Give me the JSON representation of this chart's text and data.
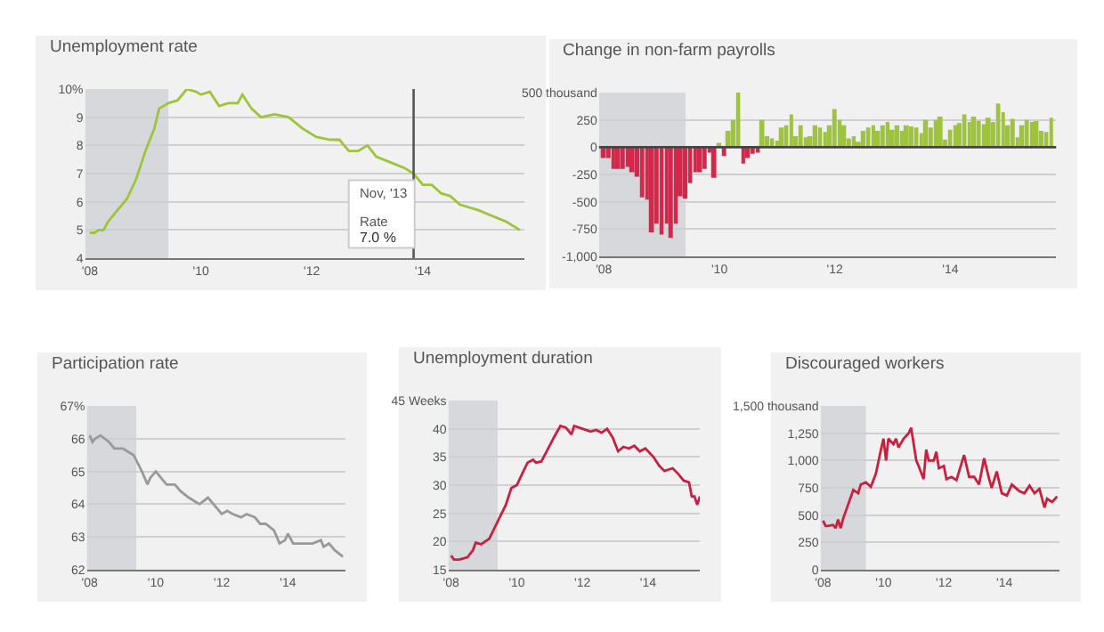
{
  "chart_data": [
    {
      "type": "line",
      "title": "Unemployment rate",
      "color": "#9dc43a",
      "grid": "y",
      "x": [
        "2008-01",
        "2008-02",
        "2008-03",
        "2008-04",
        "2008-05",
        "2008-07",
        "2008-09",
        "2008-11",
        "2009-01",
        "2009-03",
        "2009-04",
        "2009-06",
        "2009-08",
        "2009-10",
        "2009-12",
        "2010-01",
        "2010-03",
        "2010-05",
        "2010-07",
        "2010-09",
        "2010-10",
        "2010-12",
        "2011-02",
        "2011-05",
        "2011-08",
        "2011-11",
        "2012-02",
        "2012-05",
        "2012-07",
        "2012-09",
        "2012-11",
        "2013-01",
        "2013-03",
        "2013-06",
        "2013-09",
        "2013-11",
        "2014-01",
        "2014-03",
        "2014-05",
        "2014-07",
        "2014-09",
        "2014-11",
        "2015-01",
        "2015-04",
        "2015-07",
        "2015-10"
      ],
      "values": [
        4.9,
        4.9,
        5.0,
        5.0,
        5.3,
        5.7,
        6.1,
        6.8,
        7.8,
        8.6,
        9.3,
        9.5,
        9.6,
        10.0,
        9.9,
        9.8,
        9.9,
        9.4,
        9.5,
        9.5,
        9.8,
        9.3,
        9.0,
        9.1,
        9.0,
        8.6,
        8.3,
        8.2,
        8.2,
        7.8,
        7.8,
        8.0,
        7.6,
        7.4,
        7.2,
        7.0,
        6.6,
        6.6,
        6.3,
        6.2,
        5.9,
        5.8,
        5.7,
        5.5,
        5.3,
        5.0
      ],
      "xlim": [
        "2007-12",
        "2015-11"
      ],
      "ylim": [
        4,
        10
      ],
      "xticks": [
        {
          "value": "2008-01-01",
          "label": "'08"
        },
        {
          "value": "2010-01-01",
          "label": "'10"
        },
        {
          "value": "2012-01-01",
          "label": "'12"
        },
        {
          "value": "2014-01-01",
          "label": "'14"
        }
      ],
      "yticks": [
        4,
        5,
        6,
        7,
        8,
        9,
        {
          "value": 10,
          "label": "10%"
        }
      ],
      "bands": [
        {
          "axis": "x",
          "from": "2007-12",
          "to": "2009-06",
          "color": "#d6d8db"
        }
      ],
      "ref_lines": [
        {
          "axis": "x",
          "value": "2013-11",
          "color": "#555555"
        }
      ],
      "annotations": [
        "Nov, '13",
        "Rate",
        "7.0 %"
      ]
    },
    {
      "type": "bar",
      "title": "Change in non-farm payrolls",
      "grid": "y",
      "x": [
        "2008-01",
        "2008-02",
        "2008-03",
        "2008-04",
        "2008-05",
        "2008-06",
        "2008-07",
        "2008-08",
        "2008-09",
        "2008-10",
        "2008-11",
        "2008-12",
        "2009-01",
        "2009-02",
        "2009-03",
        "2009-04",
        "2009-05",
        "2009-06",
        "2009-07",
        "2009-08",
        "2009-09",
        "2009-10",
        "2009-11",
        "2009-12",
        "2010-01",
        "2010-02",
        "2010-03",
        "2010-04",
        "2010-05",
        "2010-06",
        "2010-07",
        "2010-08",
        "2010-09",
        "2010-10",
        "2010-11",
        "2010-12",
        "2011-01",
        "2011-02",
        "2011-03",
        "2011-04",
        "2011-05",
        "2011-06",
        "2011-07",
        "2011-08",
        "2011-09",
        "2011-10",
        "2011-11",
        "2011-12",
        "2012-01",
        "2012-02",
        "2012-03",
        "2012-04",
        "2012-05",
        "2012-06",
        "2012-07",
        "2012-08",
        "2012-09",
        "2012-10",
        "2012-11",
        "2012-12",
        "2013-01",
        "2013-02",
        "2013-03",
        "2013-04",
        "2013-05",
        "2013-06",
        "2013-07",
        "2013-08",
        "2013-09",
        "2013-10",
        "2013-11",
        "2013-12",
        "2014-01",
        "2014-02",
        "2014-03",
        "2014-04",
        "2014-05",
        "2014-06",
        "2014-07",
        "2014-08",
        "2014-09",
        "2014-10",
        "2014-11",
        "2014-12",
        "2015-01",
        "2015-02",
        "2015-03",
        "2015-04",
        "2015-05",
        "2015-06",
        "2015-07",
        "2015-08",
        "2015-09",
        "2015-10"
      ],
      "values": [
        -100,
        -100,
        -200,
        -200,
        -200,
        -180,
        -230,
        -270,
        -460,
        -480,
        -780,
        -700,
        -800,
        -700,
        -830,
        -700,
        -450,
        -470,
        -330,
        -230,
        -230,
        -200,
        -50,
        -280,
        40,
        -80,
        150,
        250,
        500,
        -150,
        -100,
        -60,
        -50,
        250,
        100,
        80,
        60,
        180,
        200,
        300,
        100,
        200,
        90,
        100,
        200,
        180,
        140,
        200,
        350,
        250,
        200,
        80,
        100,
        50,
        150,
        180,
        200,
        150,
        200,
        230,
        160,
        200,
        150,
        200,
        190,
        180,
        130,
        250,
        180,
        250,
        280,
        70,
        160,
        200,
        220,
        300,
        230,
        280,
        240,
        210,
        270,
        230,
        400,
        320,
        200,
        260,
        90,
        200,
        250,
        230,
        240,
        150,
        140,
        270
      ],
      "colors": [
        "#d7264a",
        "#d7264a",
        "#d7264a",
        "#d7264a",
        "#d7264a",
        "#d7264a",
        "#d7264a",
        "#d7264a",
        "#d7264a",
        "#d7264a",
        "#d7264a",
        "#d7264a",
        "#d7264a",
        "#d7264a",
        "#d7264a",
        "#d7264a",
        "#d7264a",
        "#d7264a",
        "#d7264a",
        "#d7264a",
        "#d7264a",
        "#d7264a",
        "#d7264a",
        "#d7264a",
        "#9dc43a",
        "#d7264a",
        "#9dc43a",
        "#9dc43a",
        "#9dc43a",
        "#d7264a",
        "#d7264a",
        "#d7264a",
        "#d7264a",
        "#9dc43a",
        "#9dc43a",
        "#9dc43a",
        "#9dc43a",
        "#9dc43a",
        "#9dc43a",
        "#9dc43a",
        "#9dc43a",
        "#9dc43a",
        "#9dc43a",
        "#9dc43a",
        "#9dc43a",
        "#9dc43a",
        "#9dc43a",
        "#9dc43a",
        "#9dc43a",
        "#9dc43a",
        "#9dc43a",
        "#9dc43a",
        "#9dc43a",
        "#9dc43a",
        "#9dc43a",
        "#9dc43a",
        "#9dc43a",
        "#9dc43a",
        "#9dc43a",
        "#9dc43a",
        "#9dc43a",
        "#9dc43a",
        "#9dc43a",
        "#9dc43a",
        "#9dc43a",
        "#9dc43a",
        "#9dc43a",
        "#9dc43a",
        "#9dc43a",
        "#9dc43a",
        "#9dc43a",
        "#9dc43a",
        "#9dc43a",
        "#9dc43a",
        "#9dc43a",
        "#9dc43a",
        "#9dc43a",
        "#9dc43a",
        "#9dc43a",
        "#9dc43a",
        "#9dc43a",
        "#9dc43a",
        "#9dc43a",
        "#9dc43a",
        "#9dc43a",
        "#9dc43a",
        "#9dc43a",
        "#9dc43a",
        "#9dc43a",
        "#9dc43a",
        "#9dc43a",
        "#9dc43a",
        "#9dc43a",
        "#9dc43a"
      ],
      "xlim": [
        "2007-12",
        "2015-11"
      ],
      "ylim": [
        -1000,
        500
      ],
      "xticks": [
        {
          "value": "2008-01-01",
          "label": "'08"
        },
        {
          "value": "2010-01-01",
          "label": "'10"
        },
        {
          "value": "2012-01-01",
          "label": "'12"
        },
        {
          "value": "2014-01-01",
          "label": "'14"
        }
      ],
      "yticks": [
        {
          "value": -1000,
          "label": "-1,000"
        },
        -750,
        -500,
        -250,
        0,
        250,
        {
          "value": 500,
          "label": "500 thousand"
        }
      ],
      "bands": [
        {
          "axis": "x",
          "from": "2007-12",
          "to": "2009-06",
          "color": "#d6d8db"
        }
      ],
      "ref_lines": [
        {
          "axis": "y",
          "value": 0,
          "color": "#444444"
        }
      ]
    },
    {
      "type": "line",
      "title": "Participation rate",
      "color": "#999999",
      "grid": "y",
      "x": [
        "2008-01",
        "2008-02",
        "2008-03",
        "2008-05",
        "2008-08",
        "2008-10",
        "2009-01",
        "2009-03",
        "2009-05",
        "2009-08",
        "2009-10",
        "2009-11",
        "2010-01",
        "2010-03",
        "2010-05",
        "2010-08",
        "2010-10",
        "2011-01",
        "2011-03",
        "2011-05",
        "2011-08",
        "2011-10",
        "2012-01",
        "2012-03",
        "2012-05",
        "2012-08",
        "2012-10",
        "2013-01",
        "2013-03",
        "2013-05",
        "2013-08",
        "2013-10",
        "2013-12",
        "2014-01",
        "2014-03",
        "2014-05",
        "2014-08",
        "2014-10",
        "2015-01",
        "2015-02",
        "2015-04",
        "2015-06",
        "2015-09"
      ],
      "values": [
        66.1,
        65.9,
        66.0,
        66.1,
        65.9,
        65.7,
        65.7,
        65.6,
        65.5,
        65.0,
        64.6,
        64.8,
        65.0,
        64.8,
        64.6,
        64.6,
        64.4,
        64.2,
        64.1,
        64.0,
        64.2,
        64.0,
        63.7,
        63.8,
        63.7,
        63.6,
        63.7,
        63.6,
        63.4,
        63.4,
        63.2,
        62.8,
        62.9,
        63.1,
        62.8,
        62.8,
        62.8,
        62.8,
        62.9,
        62.7,
        62.8,
        62.6,
        62.4
      ],
      "xlim": [
        "2007-12",
        "2015-10"
      ],
      "ylim": [
        62,
        67
      ],
      "xticks": [
        {
          "value": "2008-01-01",
          "label": "'08"
        },
        {
          "value": "2010-01-01",
          "label": "'10"
        },
        {
          "value": "2012-01-01",
          "label": "'12"
        },
        {
          "value": "2014-01-01",
          "label": "'14"
        }
      ],
      "yticks": [
        62,
        63,
        64,
        65,
        66,
        {
          "value": 67,
          "label": "67%"
        }
      ],
      "bands": [
        {
          "axis": "x",
          "from": "2007-12",
          "to": "2009-06",
          "color": "#d6d8db"
        }
      ]
    },
    {
      "type": "line",
      "title": "Unemployment duration",
      "color": "#c8203f",
      "grid": "y",
      "x": [
        "2008-01",
        "2008-02",
        "2008-04",
        "2008-07",
        "2008-09",
        "2008-10",
        "2008-12",
        "2009-03",
        "2009-05",
        "2009-07",
        "2009-09",
        "2009-11",
        "2010-01",
        "2010-03",
        "2010-05",
        "2010-07",
        "2010-08",
        "2010-10",
        "2011-01",
        "2011-03",
        "2011-05",
        "2011-07",
        "2011-09",
        "2011-10",
        "2012-01",
        "2012-04",
        "2012-06",
        "2012-08",
        "2012-10",
        "2012-12",
        "2013-02",
        "2013-04",
        "2013-06",
        "2013-08",
        "2013-10",
        "2013-12",
        "2014-03",
        "2014-05",
        "2014-07",
        "2014-10",
        "2014-12",
        "2015-02",
        "2015-04",
        "2015-05",
        "2015-06",
        "2015-07",
        "2015-08"
      ],
      "values": [
        17.5,
        16.8,
        16.8,
        17.2,
        18.5,
        19.8,
        19.5,
        20.5,
        22.5,
        24.5,
        26.5,
        29.5,
        30,
        32,
        34,
        34.5,
        34,
        34.2,
        37,
        38.8,
        40.5,
        40.2,
        39,
        40.5,
        40,
        39.5,
        39.8,
        39.3,
        40,
        38.5,
        36,
        36.8,
        36.5,
        37,
        36,
        36.5,
        35,
        33.5,
        32.5,
        33,
        32,
        30.8,
        30.5,
        28,
        28,
        26.5,
        28
      ],
      "xlim": [
        "2007-12",
        "2015-08"
      ],
      "ylim": [
        15,
        45
      ],
      "xticks": [
        {
          "value": "2008-01-01",
          "label": "'08"
        },
        {
          "value": "2010-01-01",
          "label": "'10"
        },
        {
          "value": "2012-01-01",
          "label": "'12"
        },
        {
          "value": "2014-01-01",
          "label": "'14"
        }
      ],
      "yticks": [
        15,
        20,
        25,
        30,
        35,
        40,
        {
          "value": 45,
          "label": "45 Weeks"
        }
      ],
      "bands": [
        {
          "axis": "x",
          "from": "2007-12",
          "to": "2009-06",
          "color": "#d6d8db"
        }
      ]
    },
    {
      "type": "line",
      "title": "Discouraged workers",
      "color": "#c8203f",
      "grid": "y",
      "x": [
        "2008-01",
        "2008-02",
        "2008-03",
        "2008-05",
        "2008-06",
        "2008-07",
        "2008-08",
        "2008-09",
        "2008-11",
        "2009-01",
        "2009-03",
        "2009-04",
        "2009-06",
        "2009-08",
        "2009-10",
        "2009-12",
        "2010-01",
        "2010-02",
        "2010-03",
        "2010-05",
        "2010-06",
        "2010-07",
        "2010-09",
        "2010-11",
        "2010-12",
        "2011-02",
        "2011-03",
        "2011-05",
        "2011-06",
        "2011-07",
        "2011-09",
        "2011-10",
        "2011-11",
        "2012-01",
        "2012-02",
        "2012-04",
        "2012-06",
        "2012-09",
        "2012-11",
        "2013-01",
        "2013-03",
        "2013-05",
        "2013-07",
        "2013-08",
        "2013-10",
        "2013-12",
        "2014-02",
        "2014-04",
        "2014-07",
        "2014-09",
        "2014-11",
        "2015-01",
        "2015-03",
        "2015-05",
        "2015-06",
        "2015-08",
        "2015-10"
      ],
      "values": [
        450,
        400,
        400,
        410,
        380,
        460,
        380,
        470,
        600,
        730,
        700,
        780,
        800,
        760,
        880,
        1100,
        1200,
        1000,
        1200,
        1150,
        1200,
        1120,
        1200,
        1250,
        1300,
        1000,
        950,
        830,
        1100,
        1000,
        1000,
        1080,
        930,
        950,
        830,
        850,
        820,
        1050,
        850,
        850,
        780,
        1020,
        830,
        750,
        900,
        700,
        680,
        780,
        720,
        700,
        770,
        700,
        740,
        570,
        650,
        620,
        670
      ],
      "xlim": [
        "2007-12",
        "2015-11"
      ],
      "ylim": [
        0,
        1500
      ],
      "xticks": [
        {
          "value": "2008-01-01",
          "label": "'08"
        },
        {
          "value": "2010-01-01",
          "label": "'10"
        },
        {
          "value": "2012-01-01",
          "label": "'12"
        },
        {
          "value": "2014-01-01",
          "label": "'14"
        }
      ],
      "yticks": [
        0,
        250,
        500,
        750,
        {
          "value": 1000,
          "label": "1,000"
        },
        {
          "value": 1250,
          "label": "1,250"
        },
        {
          "value": 1500,
          "label": "1,500 thousand"
        }
      ],
      "bands": [
        {
          "axis": "x",
          "from": "2007-12",
          "to": "2009-06",
          "color": "#d6d8db"
        }
      ]
    }
  ]
}
